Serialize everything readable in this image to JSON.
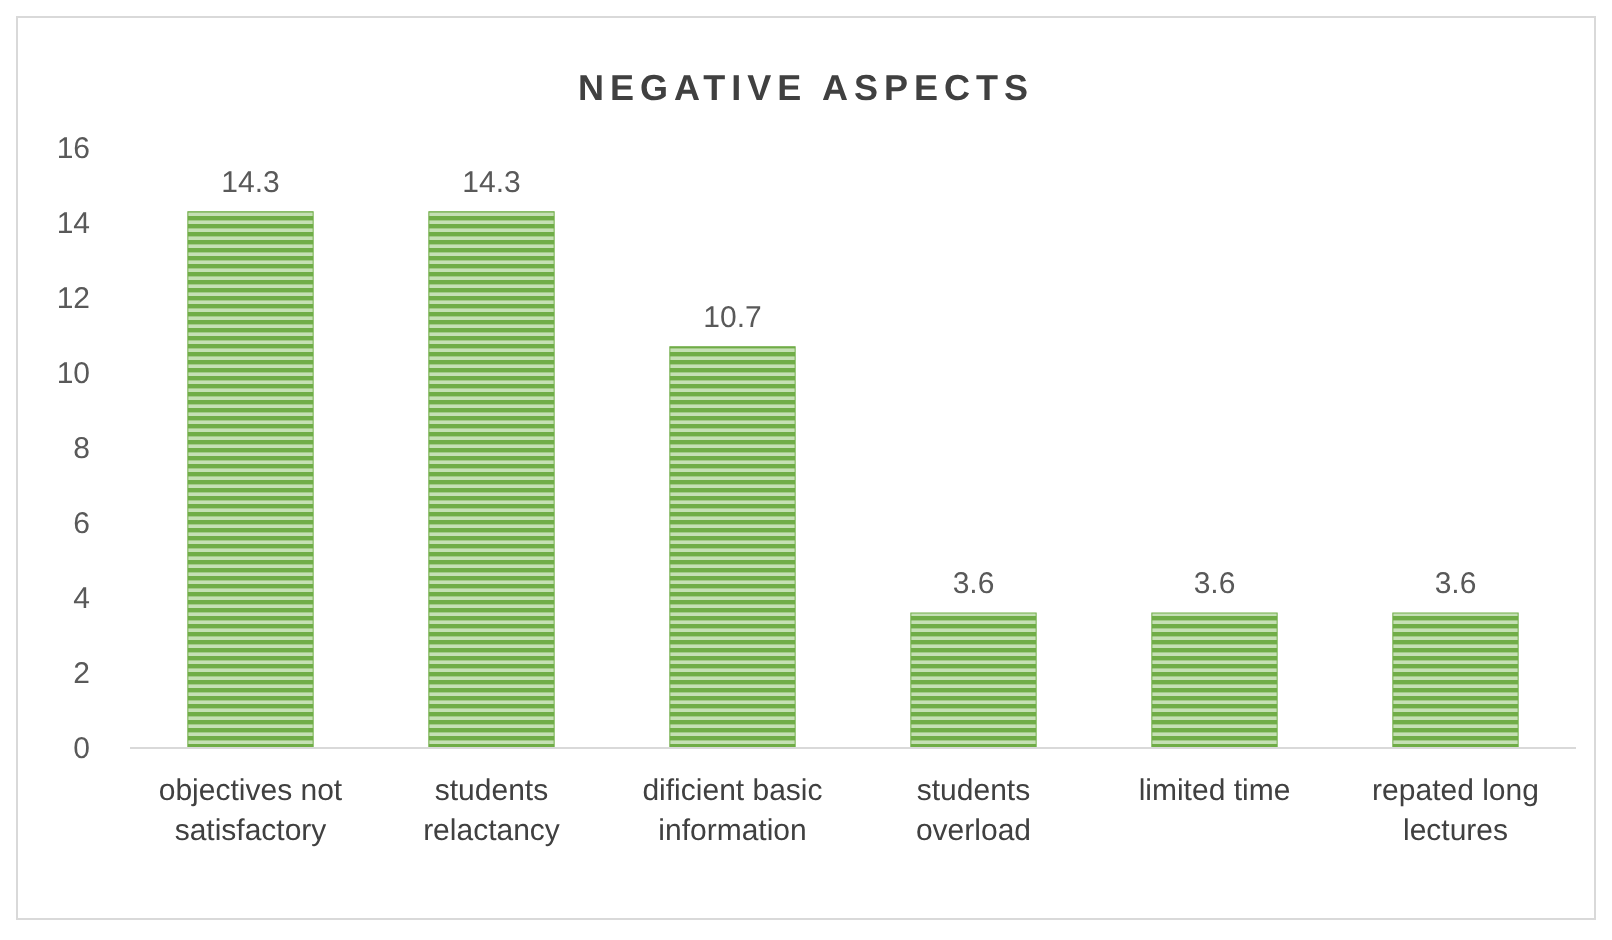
{
  "chart_data": {
    "type": "bar",
    "title": "NEGATIVE ASPECTS",
    "categories": [
      "objectives not satisfactory",
      "students relactancy",
      "dificient basic information",
      "students overload",
      "limited time",
      "repated long lectures"
    ],
    "values": [
      14.3,
      14.3,
      10.7,
      3.6,
      3.6,
      3.6
    ],
    "color": "#70ad47",
    "ylim": [
      0,
      16
    ],
    "yticks": [
      0,
      2,
      4,
      6,
      8,
      10,
      12,
      14,
      16
    ],
    "data_labels": true
  }
}
